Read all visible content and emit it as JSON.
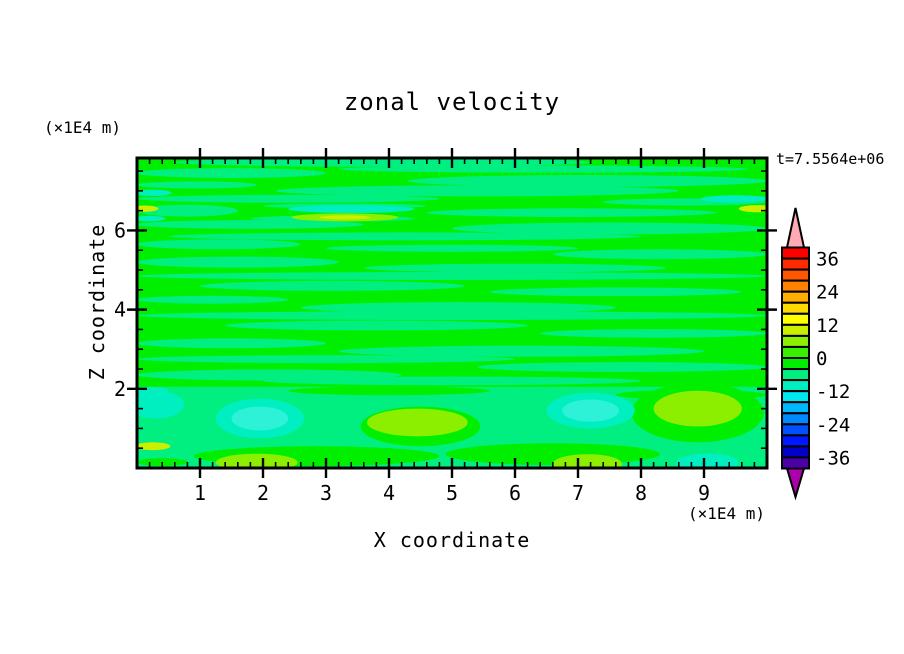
{
  "title": "zonal velocity",
  "annotations": {
    "time_label": "t=7.5564e+06",
    "y_axis_unit_label": "(×1E4 m)",
    "x_axis_unit_label": "(×1E4 m)"
  },
  "axes": {
    "x": {
      "title": "X coordinate",
      "min": 0,
      "max": 10,
      "major_ticks": [
        1,
        2,
        3,
        4,
        5,
        6,
        7,
        8,
        9
      ],
      "major_tick_labels": [
        "1",
        "2",
        "3",
        "4",
        "5",
        "6",
        "7",
        "8",
        "9"
      ],
      "minor_tick_step": 0.2
    },
    "z": {
      "title": "Z coordinate",
      "min": 0,
      "max": 7.83,
      "major_ticks": [
        2,
        4,
        6
      ],
      "major_tick_labels": [
        "2",
        "4",
        "6"
      ],
      "minor_tick_step": 0.5
    }
  },
  "colorbar": {
    "tick_labels": [
      "36",
      "24",
      "12",
      "0",
      "-12",
      "-24",
      "-36"
    ],
    "tick_values": [
      36,
      24,
      12,
      0,
      -12,
      -24,
      -36
    ],
    "level_min": -40,
    "level_max": 40,
    "level_step": 4,
    "cell_colors_top_to_bottom": [
      "#FF0000",
      "#FF2B00",
      "#FF5700",
      "#FF8200",
      "#FFAE00",
      "#FFD900",
      "#FFFF00",
      "#CCEF00",
      "#8CEF00",
      "#38EF00",
      "#00EF00",
      "#00EF80",
      "#00EFC0",
      "#00E8EF",
      "#00B8FF",
      "#0088FF",
      "#0050FF",
      "#0018FF",
      "#0000C8",
      "#4B00A8"
    ],
    "over_range_arrow_color": "#FFAAB4",
    "under_range_arrow_color": "#AC00AC"
  },
  "chart_data": {
    "type": "filled-contour",
    "field_name": "zonal velocity",
    "title": "zonal velocity",
    "xlabel": "X coordinate (×1E4 m)",
    "ylabel": "Z coordinate (×1E4 m)",
    "x_range": [
      0,
      10
    ],
    "z_range": [
      0,
      7.83
    ],
    "contour_interval": 4,
    "displayed_level_range": [
      -40,
      40
    ],
    "grid": false,
    "legend_position": "right-colorbar",
    "colors": {
      "green": "#00EF00",
      "spring": "#00EF80",
      "teal": "#00EFC0",
      "cyan_core": "#2EF2D8",
      "chartreuse": "#8CEF00",
      "yellow_green": "#CCEF00"
    },
    "base_color_key": "green",
    "bottom_band": {
      "z_top": 2.05,
      "color_key": "spring"
    },
    "spring_streaks": [
      [
        7.82,
        1.0,
        6.0,
        0.12
      ],
      [
        7.72,
        0.6,
        7.2,
        0.22
      ],
      [
        7.55,
        3.2,
        9.7,
        0.18
      ],
      [
        7.45,
        0,
        3,
        0.25
      ],
      [
        7.25,
        4.3,
        10,
        0.3
      ],
      [
        7.15,
        0,
        1.9,
        0.18
      ],
      [
        7.0,
        2.2,
        8.6,
        0.28
      ],
      [
        6.8,
        0,
        4.8,
        0.2
      ],
      [
        6.72,
        7.4,
        10,
        0.18
      ],
      [
        6.62,
        2.0,
        4.6,
        0.12
      ],
      [
        6.5,
        0,
        1.6,
        0.3
      ],
      [
        6.45,
        4.6,
        9.2,
        0.22
      ],
      [
        6.3,
        1.8,
        4.4,
        0.16
      ],
      [
        6.15,
        0,
        3.6,
        0.22
      ],
      [
        6.05,
        5.0,
        10,
        0.3
      ],
      [
        5.85,
        0.5,
        8.0,
        0.2
      ],
      [
        5.65,
        0,
        2.6,
        0.25
      ],
      [
        5.55,
        3.0,
        7.0,
        0.18
      ],
      [
        5.4,
        6.6,
        10,
        0.25
      ],
      [
        5.2,
        0,
        3.2,
        0.28
      ],
      [
        5.05,
        3.6,
        8.4,
        0.22
      ],
      [
        4.85,
        0,
        10,
        0.2
      ],
      [
        4.6,
        1.0,
        5.2,
        0.25
      ],
      [
        4.45,
        5.6,
        9.6,
        0.22
      ],
      [
        4.25,
        0,
        2.4,
        0.2
      ],
      [
        4.05,
        2.6,
        7.6,
        0.28
      ],
      [
        3.85,
        0,
        10,
        0.22
      ],
      [
        3.6,
        1.4,
        6.2,
        0.25
      ],
      [
        3.4,
        6.4,
        10,
        0.22
      ],
      [
        3.15,
        0,
        3.0,
        0.25
      ],
      [
        2.95,
        3.2,
        9.0,
        0.28
      ],
      [
        2.75,
        0,
        6.0,
        0.2
      ],
      [
        2.55,
        5.4,
        10,
        0.25
      ],
      [
        2.35,
        0,
        4.2,
        0.28
      ],
      [
        2.2,
        2.0,
        8.0,
        0.22
      ]
    ],
    "green_streaks": [
      [
        1.95,
        2.4,
        5.6,
        0.22
      ],
      [
        1.85,
        7.6,
        10,
        0.25
      ],
      [
        0.3,
        0.9,
        4.8,
        0.5
      ],
      [
        0.35,
        4.9,
        8.3,
        0.55
      ],
      [
        0.15,
        0,
        0.8,
        0.2
      ]
    ],
    "green_blobs": [
      [
        8.9,
        1.4,
        1.05,
        0.75
      ],
      [
        4.5,
        1.05,
        0.95,
        0.5
      ]
    ],
    "teal_patches": [
      [
        3.4,
        6.54,
        1.0,
        0.1
      ],
      [
        9.5,
        6.8,
        0.55,
        0.09
      ],
      [
        0.25,
        6.95,
        0.3,
        0.08
      ],
      [
        0.2,
        6.3,
        0.25,
        0.07
      ],
      [
        0.2,
        1.95,
        0.3,
        0.1
      ],
      [
        1.95,
        1.25,
        0.7,
        0.5
      ],
      [
        7.2,
        1.45,
        0.7,
        0.45
      ],
      [
        9.05,
        0.12,
        0.5,
        0.25
      ],
      [
        0.3,
        1.6,
        0.45,
        0.35
      ]
    ],
    "cyan_core_patches": [
      [
        1.95,
        1.25,
        0.45,
        0.3
      ],
      [
        7.2,
        1.45,
        0.45,
        0.28
      ]
    ],
    "chartreuse_patches": [
      [
        4.45,
        1.15,
        0.8,
        0.35
      ],
      [
        8.9,
        1.5,
        0.7,
        0.45
      ],
      [
        7.15,
        0.1,
        0.55,
        0.25
      ],
      [
        1.9,
        0.14,
        0.65,
        0.22
      ],
      [
        3.3,
        6.33,
        0.85,
        0.1
      ]
    ],
    "yellow_green_patches": [
      [
        0.12,
        6.55,
        0.22,
        0.08
      ],
      [
        9.85,
        6.55,
        0.3,
        0.09
      ],
      [
        0.25,
        0.55,
        0.28,
        0.1
      ],
      [
        3.3,
        6.33,
        0.4,
        0.05
      ]
    ]
  }
}
